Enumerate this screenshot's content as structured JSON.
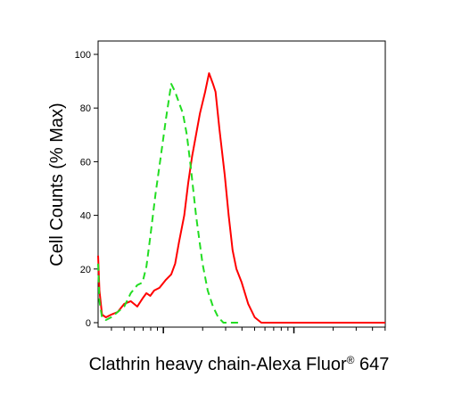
{
  "chart_data": {
    "type": "line",
    "xlabel": "Clathrin heavy chain-Alexa Fluor",
    "xlabel_superscript": "®",
    "xlabel_suffix": " 647",
    "ylabel": "Cell Counts (% Max)",
    "x_scale": "log",
    "ylim": [
      0,
      100
    ],
    "y_ticks": [
      0,
      20,
      40,
      60,
      80,
      100
    ],
    "y_tick_labels": [
      "0",
      "20",
      "40",
      "60",
      "80",
      "100"
    ],
    "x_decades": [
      1,
      2,
      3
    ],
    "x_range_decades": [
      0.5,
      2.7
    ],
    "grid": false,
    "series": [
      {
        "color": "#ff0000",
        "dash": "solid",
        "points": [
          [
            0.5,
            25
          ],
          [
            0.51,
            12
          ],
          [
            0.53,
            3
          ],
          [
            0.56,
            2
          ],
          [
            0.6,
            3
          ],
          [
            0.65,
            4
          ],
          [
            0.7,
            7
          ],
          [
            0.75,
            8
          ],
          [
            0.8,
            6
          ],
          [
            0.84,
            9
          ],
          [
            0.87,
            11
          ],
          [
            0.9,
            10
          ],
          [
            0.93,
            12
          ],
          [
            0.97,
            13
          ],
          [
            1.02,
            16
          ],
          [
            1.06,
            18
          ],
          [
            1.09,
            22
          ],
          [
            1.12,
            30
          ],
          [
            1.16,
            40
          ],
          [
            1.19,
            52
          ],
          [
            1.22,
            62
          ],
          [
            1.25,
            70
          ],
          [
            1.28,
            78
          ],
          [
            1.32,
            86
          ],
          [
            1.35,
            93
          ],
          [
            1.38,
            89
          ],
          [
            1.4,
            86
          ],
          [
            1.43,
            72
          ],
          [
            1.47,
            55
          ],
          [
            1.5,
            40
          ],
          [
            1.53,
            27
          ],
          [
            1.56,
            20
          ],
          [
            1.6,
            15
          ],
          [
            1.65,
            7
          ],
          [
            1.7,
            2
          ],
          [
            1.75,
            0
          ],
          [
            1.85,
            0
          ],
          [
            2.1,
            0
          ],
          [
            2.4,
            0
          ],
          [
            2.7,
            0
          ]
        ]
      },
      {
        "color": "#22dd22",
        "dash": "dashed",
        "points": [
          [
            0.5,
            22
          ],
          [
            0.51,
            8
          ],
          [
            0.53,
            2
          ],
          [
            0.56,
            1
          ],
          [
            0.6,
            2
          ],
          [
            0.65,
            4
          ],
          [
            0.7,
            6
          ],
          [
            0.75,
            11
          ],
          [
            0.8,
            14
          ],
          [
            0.84,
            15
          ],
          [
            0.87,
            21
          ],
          [
            0.9,
            32
          ],
          [
            0.94,
            48
          ],
          [
            0.98,
            62
          ],
          [
            1.02,
            76
          ],
          [
            1.06,
            89
          ],
          [
            1.09,
            86
          ],
          [
            1.12,
            82
          ],
          [
            1.15,
            78
          ],
          [
            1.18,
            70
          ],
          [
            1.21,
            58
          ],
          [
            1.25,
            40
          ],
          [
            1.3,
            22
          ],
          [
            1.34,
            12
          ],
          [
            1.38,
            6
          ],
          [
            1.42,
            2
          ],
          [
            1.46,
            0
          ],
          [
            1.6,
            0
          ]
        ]
      }
    ]
  }
}
